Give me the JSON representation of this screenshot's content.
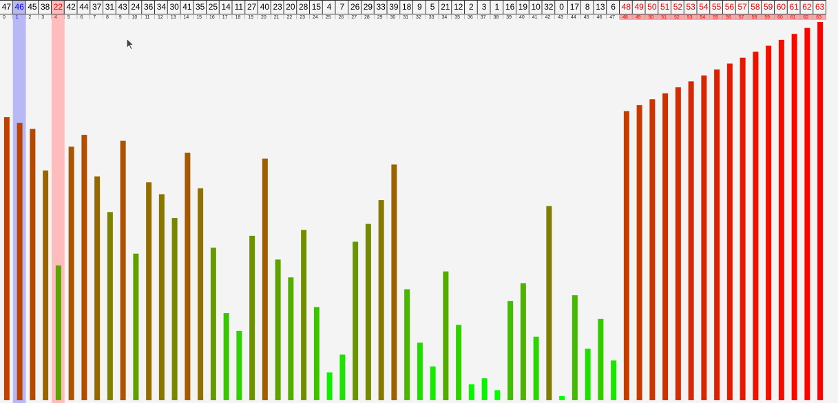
{
  "chart_data": {
    "type": "bar",
    "indices": [
      0,
      1,
      2,
      3,
      4,
      5,
      6,
      7,
      8,
      9,
      10,
      11,
      12,
      13,
      14,
      15,
      16,
      17,
      18,
      19,
      20,
      21,
      22,
      23,
      24,
      25,
      26,
      27,
      28,
      29,
      30,
      31,
      32,
      33,
      34,
      35,
      36,
      37,
      38,
      39,
      40,
      41,
      42,
      43,
      44,
      45,
      46,
      47,
      48,
      49,
      50,
      51,
      52,
      53,
      54,
      55,
      56,
      57,
      58,
      59,
      60,
      61,
      62,
      63
    ],
    "values": [
      47,
      46,
      45,
      38,
      22,
      42,
      44,
      37,
      31,
      43,
      24,
      36,
      34,
      30,
      41,
      35,
      25,
      14,
      11,
      27,
      40,
      23,
      20,
      28,
      15,
      4,
      7,
      26,
      29,
      33,
      39,
      18,
      9,
      5,
      21,
      12,
      2,
      3,
      1,
      16,
      19,
      10,
      32,
      0,
      17,
      8,
      13,
      6,
      48,
      49,
      50,
      51,
      52,
      53,
      54,
      55,
      56,
      57,
      58,
      59,
      60,
      61,
      62,
      63
    ],
    "max_value": 63,
    "sorted_from_index": 48,
    "highlight_blue_index": 1,
    "highlight_red_index": 4
  },
  "colors": {
    "background": "#f4f4f4",
    "blue_highlight": "#b8b8f6",
    "red_highlight": "#ffbcbc",
    "blue_text": "#0000ee",
    "red_text": "#ee0000",
    "sorted_cell_bg": "#f8a8a8",
    "bar_low": "#00ff00",
    "bar_high": "#ff0000"
  },
  "icons": {
    "cursor": "mouse-pointer-icon"
  }
}
